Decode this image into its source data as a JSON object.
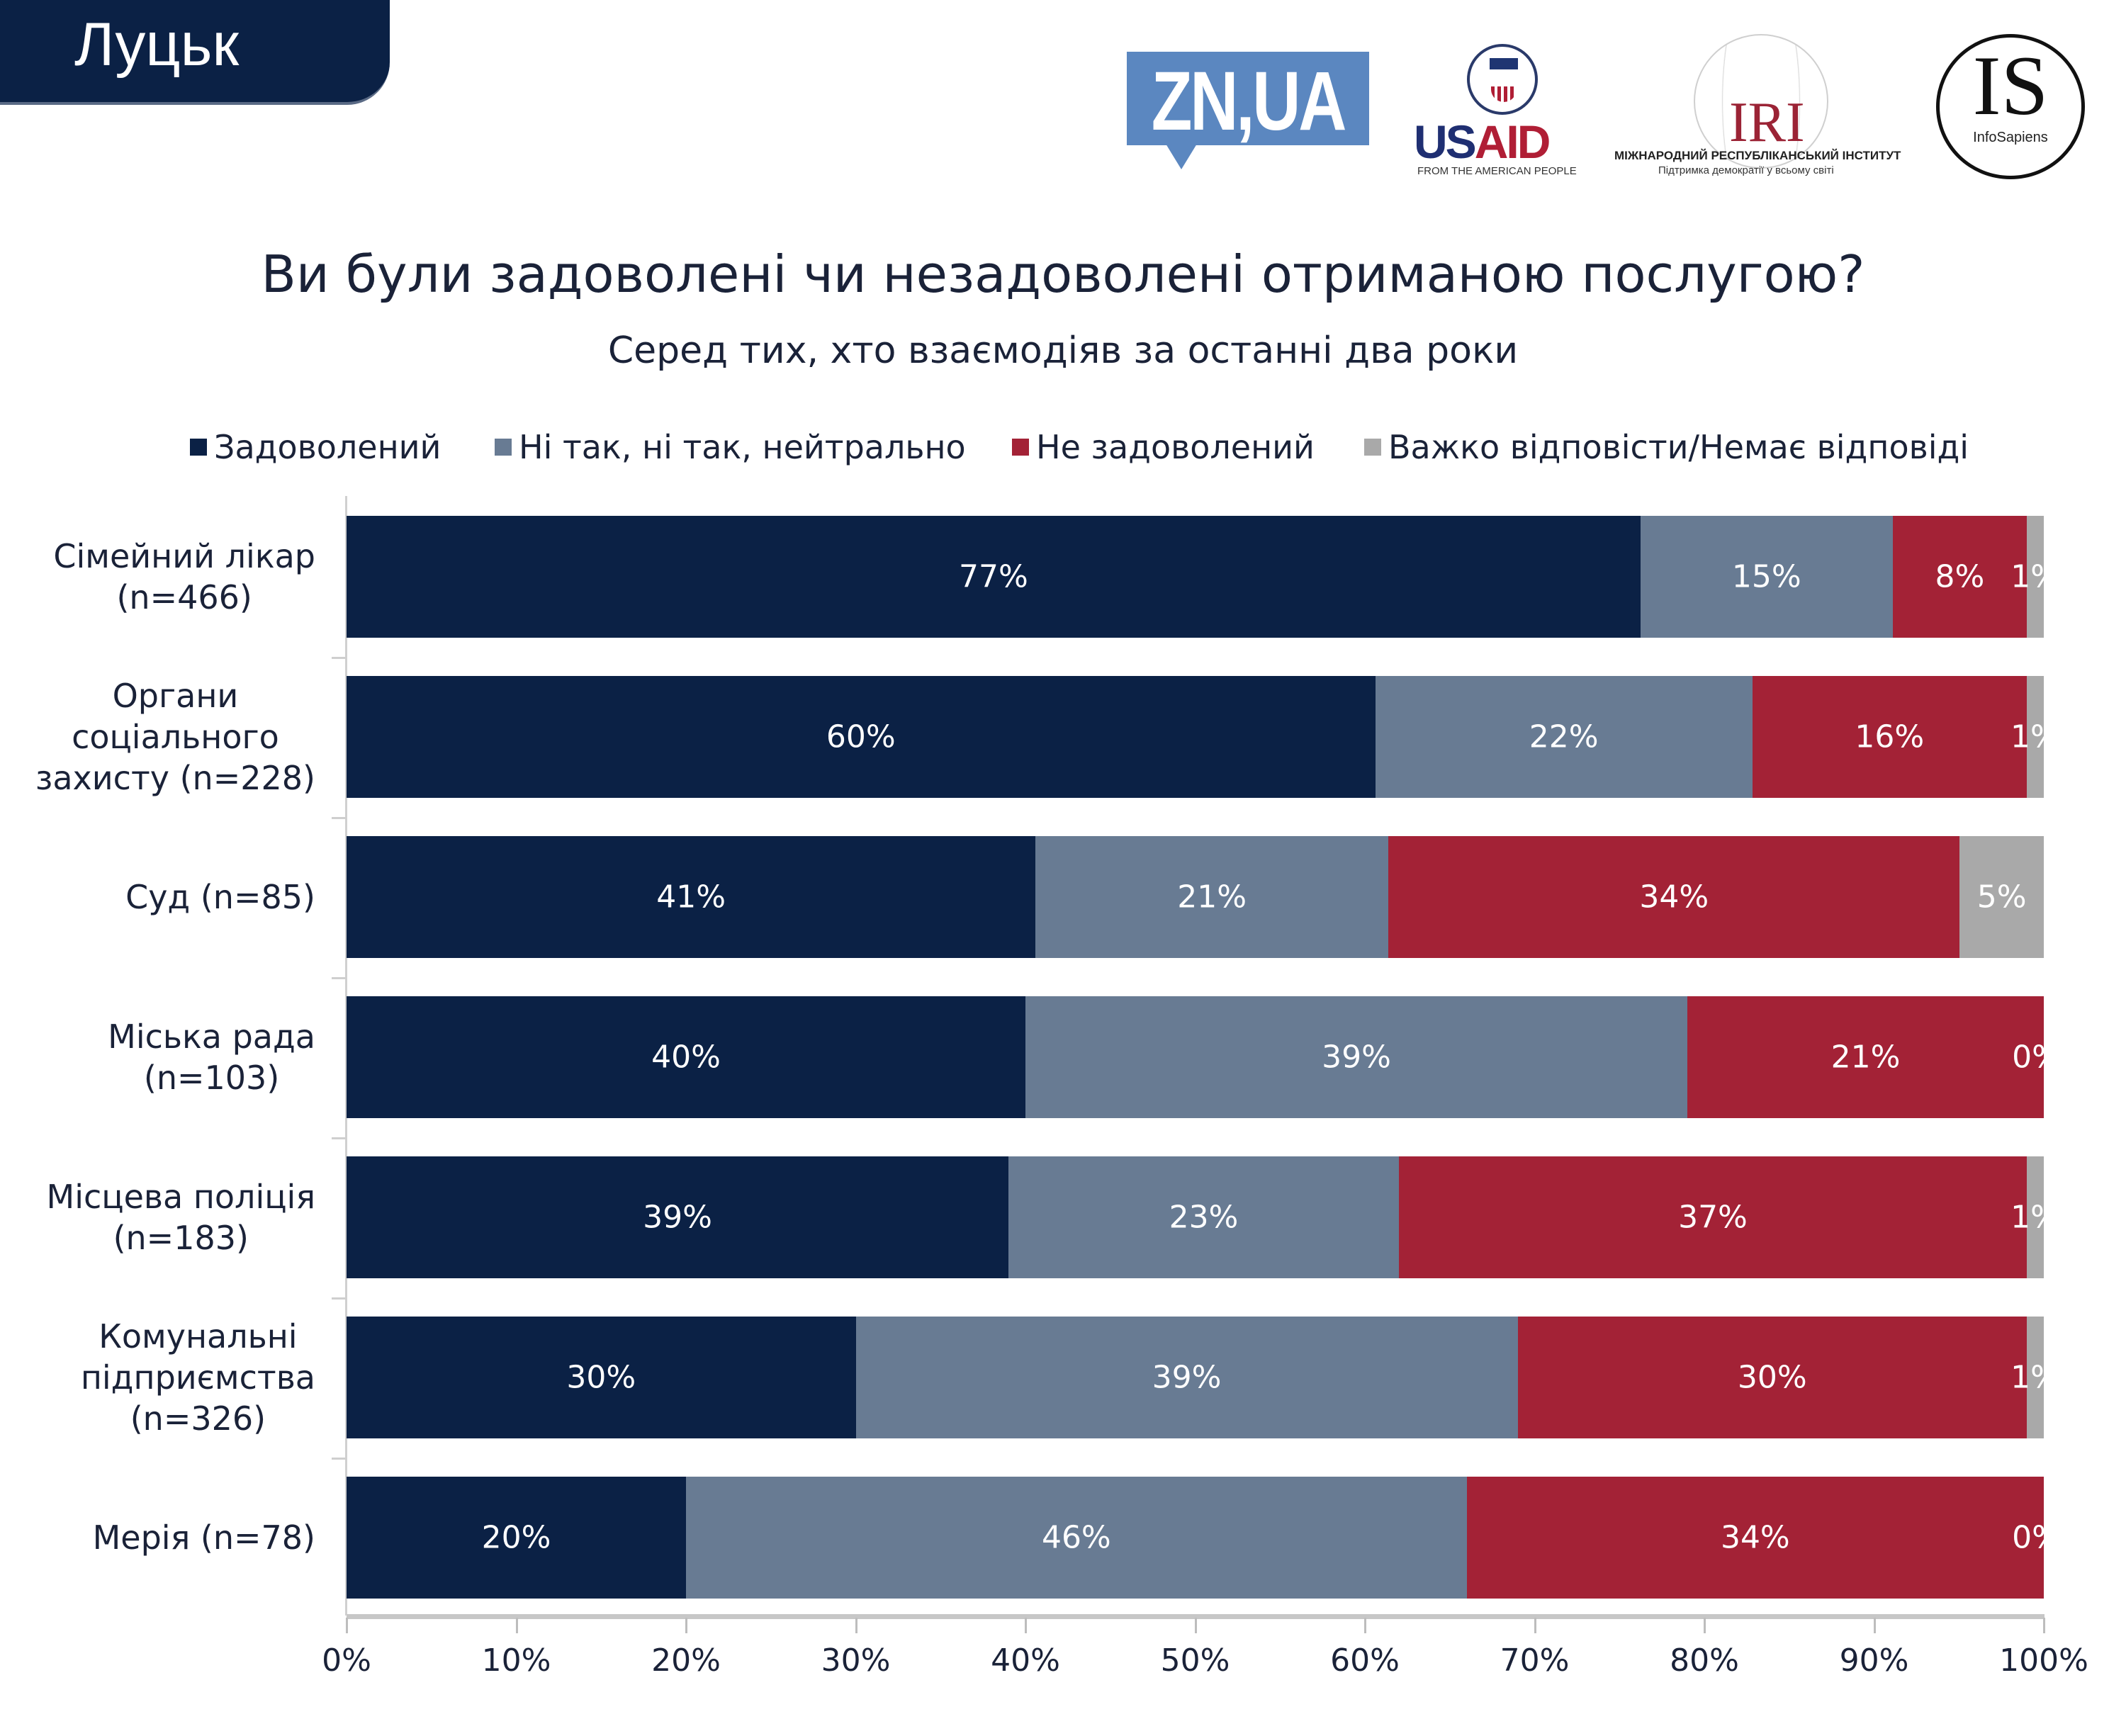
{
  "header": {
    "city": "Луцьк",
    "logos": {
      "zn": "ZN,UA",
      "usaid": {
        "us": "US",
        "aid": "AID",
        "sub": "FROM THE AMERICAN PEOPLE",
        "seal": "USAID"
      },
      "iri": {
        "word": "IRI",
        "line1": "МІЖНАРОДНИЙ РЕСПУБЛІКАНСЬКИЙ ІНСТИТУТ",
        "line2": "Підтримка демократії у всьому світі"
      },
      "infosapiens": {
        "big": "IS",
        "small": "InfoSapiens"
      }
    }
  },
  "colors": {
    "satisfied": "#0b2145",
    "neutral": "#687b93",
    "dissatisfied": "#a32236",
    "no_answer": "#a9a9a9"
  },
  "chart_data": {
    "type": "bar",
    "orientation": "horizontal",
    "stacked": true,
    "title": "Ви були задоволені чи незадоволені отриманою послугою?",
    "subtitle": "Серед тих, хто взаємодіяв за останні два роки",
    "legend_position": "top",
    "categories": [
      "Сімейний лікар\n(n=466)",
      "Органи\nсоціального\nзахисту (n=228)",
      "Суд (n=85)",
      "Міська рада\n(n=103)",
      "Місцева поліція\n(n=183)",
      "Комунальні\nпідприємства\n(n=326)",
      "Мерія (n=78)"
    ],
    "series": [
      {
        "name": "Задоволений",
        "key": "satisfied",
        "values": [
          77,
          60,
          41,
          40,
          39,
          30,
          20
        ]
      },
      {
        "name": "Ні так, ні так, нейтрально",
        "key": "neutral",
        "values": [
          15,
          22,
          21,
          39,
          23,
          39,
          46
        ]
      },
      {
        "name": "Не задоволений",
        "key": "dissatisfied",
        "values": [
          8,
          16,
          34,
          21,
          37,
          30,
          34
        ]
      },
      {
        "name": "Важко відповісти/Немає відповіді",
        "key": "no_answer",
        "values": [
          1,
          1,
          5,
          0,
          1,
          1,
          0
        ]
      }
    ],
    "data_labels": [
      [
        "77%",
        "15%",
        "8%",
        "1%"
      ],
      [
        "60%",
        "22%",
        "16%",
        "1%"
      ],
      [
        "41%",
        "21%",
        "34%",
        "5%"
      ],
      [
        "40%",
        "39%",
        "21%",
        "0%"
      ],
      [
        "39%",
        "23%",
        "37%",
        "1%"
      ],
      [
        "30%",
        "39%",
        "30%",
        "1%"
      ],
      [
        "20%",
        "46%",
        "34%",
        "0%"
      ]
    ],
    "xlim": [
      0,
      100
    ],
    "x_ticks": [
      "0%",
      "10%",
      "20%",
      "30%",
      "40%",
      "50%",
      "60%",
      "70%",
      "80%",
      "90%",
      "100%"
    ],
    "xlabel": "",
    "ylabel": "",
    "grid": false
  }
}
